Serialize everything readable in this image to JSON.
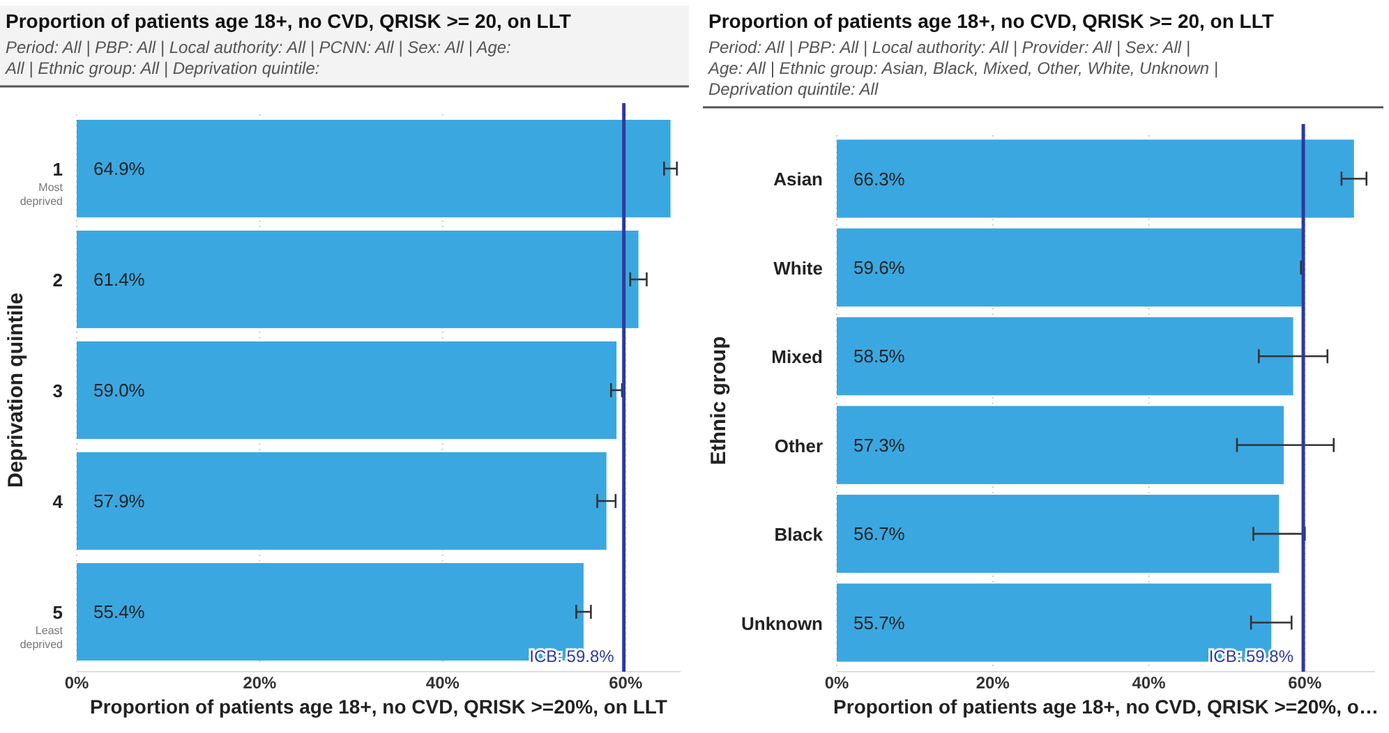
{
  "chart_data": [
    {
      "type": "bar",
      "orientation": "horizontal",
      "title": "Proportion of patients age 18+, no CVD, QRISK >= 20, on LLT",
      "subtitle": "Period: All | PBP: All | Local authority: All | PCNN: All | Sex: All | Age: All | Ethnic group: All | Deprivation quintile:",
      "categories": [
        "1\nMost\ndeprived",
        "2",
        "3",
        "4",
        "5\nLeast\ndeprived"
      ],
      "values": [
        64.9,
        61.4,
        59.0,
        57.9,
        55.4
      ],
      "value_labels": [
        "64.9%",
        "61.4%",
        "59.0%",
        "57.9%",
        "55.4%"
      ],
      "errors": [
        0.7,
        0.9,
        0.6,
        1.0,
        0.8
      ],
      "color": "#3ba7e0",
      "xlim": [
        0,
        66
      ],
      "xticks": [
        {
          "value": 0,
          "label": "0%"
        },
        {
          "value": 20,
          "label": "20%"
        },
        {
          "value": 40,
          "label": "40%"
        },
        {
          "value": 60,
          "label": "60%"
        }
      ],
      "xlabel": "Proportion of patients age 18+, no CVD, QRISK >=20%, on LLT",
      "ylabel": "Deprivation quintile",
      "ref_lines": [
        {
          "axis": "x",
          "value": 59.8,
          "label": "ICB: 59.8%",
          "color": "#2e3a9e"
        }
      ],
      "grid": "x"
    },
    {
      "type": "bar",
      "orientation": "horizontal",
      "title": "Proportion of patients age 18+, no CVD, QRISK >= 20, on LLT",
      "subtitle": "Period: All | PBP: All | Local authority: All | Provider: All | Sex: All | Age: All | Ethnic group: Asian, Black, Mixed, Other, White, Unknown | Deprivation quintile: All",
      "categories": [
        "Asian",
        "White",
        "Mixed",
        "Other",
        "Black",
        "Unknown"
      ],
      "values": [
        66.3,
        59.6,
        58.5,
        57.3,
        56.7,
        55.7
      ],
      "value_labels": [
        "66.3%",
        "59.6%",
        "58.5%",
        "57.3%",
        "56.7%",
        "55.7%"
      ],
      "errors": [
        1.6,
        0.1,
        4.4,
        [
          51.3,
          63.7
        ],
        3.3,
        2.6
      ],
      "color": "#3ba7e0",
      "xlim": [
        0,
        69
      ],
      "xticks": [
        {
          "value": 0,
          "label": "0%"
        },
        {
          "value": 20,
          "label": "20%"
        },
        {
          "value": 40,
          "label": "40%"
        },
        {
          "value": 60,
          "label": "60%"
        }
      ],
      "xlabel": "Proportion of patients age 18+, no CVD, QRISK >=20%, o…",
      "ylabel": "Ethnic group",
      "ref_lines": [
        {
          "axis": "x",
          "value": 59.8,
          "label": "ICB: 59.8%",
          "color": "#2e3a9e"
        }
      ],
      "grid": "x"
    }
  ]
}
